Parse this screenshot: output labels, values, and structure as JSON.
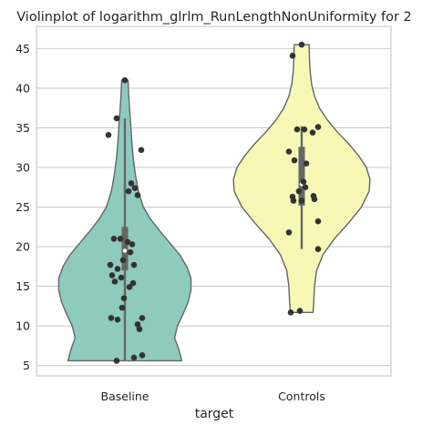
{
  "chart_data": {
    "type": "violin",
    "title": "Violinplot of logarithm_glrlm_RunLengthNonUniformity for 2",
    "xlabel": "target",
    "ylabel": "",
    "categories": [
      "Baseline",
      "Controls"
    ],
    "ylim": [
      3.7,
      47.8
    ],
    "yticks": [
      5,
      10,
      15,
      20,
      25,
      30,
      35,
      40,
      45
    ],
    "ytick_labels": [
      "5",
      "10",
      "15",
      "20",
      "25",
      "30",
      "35",
      "40",
      "45"
    ],
    "grid": true,
    "colors": {
      "Baseline": "#8ecabe",
      "Controls": "#f7f7b6",
      "outline": "#666666",
      "box": "#666666",
      "points": "#333333",
      "grid": "#cccccc",
      "frame": "#cccccc"
    },
    "series": [
      {
        "category": "Baseline",
        "range": [
          5.6,
          41.0
        ],
        "whisker": [
          5.6,
          36.2
        ],
        "box": [
          17.0,
          22.5
        ],
        "median": 19.5,
        "points": [
          {
            "jitter": 0.0,
            "value": 41.0
          },
          {
            "jitter": -0.09,
            "value": 36.2
          },
          {
            "jitter": -0.18,
            "value": 34.1
          },
          {
            "jitter": 0.18,
            "value": 32.2
          },
          {
            "jitter": 0.07,
            "value": 28.0
          },
          {
            "jitter": 0.11,
            "value": 27.4
          },
          {
            "jitter": 0.04,
            "value": 27.0
          },
          {
            "jitter": 0.14,
            "value": 26.5
          },
          {
            "jitter": -0.12,
            "value": 21.0
          },
          {
            "jitter": -0.05,
            "value": 21.0
          },
          {
            "jitter": 0.03,
            "value": 20.6
          },
          {
            "jitter": 0.08,
            "value": 20.3
          },
          {
            "jitter": 0.06,
            "value": 19.3
          },
          {
            "jitter": -0.02,
            "value": 18.3
          },
          {
            "jitter": -0.16,
            "value": 17.7
          },
          {
            "jitter": 0.1,
            "value": 17.7
          },
          {
            "jitter": -0.08,
            "value": 17.2
          },
          {
            "jitter": -0.14,
            "value": 16.4
          },
          {
            "jitter": -0.04,
            "value": 16.1
          },
          {
            "jitter": -0.11,
            "value": 15.6
          },
          {
            "jitter": 0.09,
            "value": 15.4
          },
          {
            "jitter": 0.05,
            "value": 14.9
          },
          {
            "jitter": -0.01,
            "value": 13.5
          },
          {
            "jitter": -0.03,
            "value": 12.3
          },
          {
            "jitter": -0.15,
            "value": 11.0
          },
          {
            "jitter": -0.08,
            "value": 10.8
          },
          {
            "jitter": 0.19,
            "value": 11.0
          },
          {
            "jitter": 0.14,
            "value": 10.2
          },
          {
            "jitter": 0.16,
            "value": 9.6
          },
          {
            "jitter": 0.19,
            "value": 6.3
          },
          {
            "jitter": 0.1,
            "value": 6.0
          },
          {
            "jitter": -0.09,
            "value": 5.6
          }
        ],
        "violin_profile": [
          [
            5.6,
            0.8
          ],
          [
            7.0,
            0.76
          ],
          [
            8.5,
            0.7
          ],
          [
            10.0,
            0.74
          ],
          [
            11.5,
            0.82
          ],
          [
            13.0,
            0.89
          ],
          [
            14.5,
            0.93
          ],
          [
            16.0,
            0.93
          ],
          [
            17.5,
            0.87
          ],
          [
            19.0,
            0.77
          ],
          [
            20.5,
            0.63
          ],
          [
            22.0,
            0.49
          ],
          [
            23.5,
            0.36
          ],
          [
            25.0,
            0.26
          ],
          [
            27.0,
            0.19
          ],
          [
            29.0,
            0.15
          ],
          [
            31.0,
            0.12
          ],
          [
            33.0,
            0.1
          ],
          [
            35.0,
            0.085
          ],
          [
            37.0,
            0.07
          ],
          [
            39.0,
            0.055
          ],
          [
            41.0,
            0.045
          ]
        ]
      },
      {
        "category": "Controls",
        "range": [
          11.7,
          45.5
        ],
        "whisker": [
          19.7,
          35.2
        ],
        "box": [
          25.2,
          32.6
        ],
        "median": 27.9,
        "points": [
          {
            "jitter": 0.0,
            "value": 45.5
          },
          {
            "jitter": -0.1,
            "value": 44.1
          },
          {
            "jitter": 0.18,
            "value": 35.1
          },
          {
            "jitter": -0.05,
            "value": 34.8
          },
          {
            "jitter": 0.03,
            "value": 34.8
          },
          {
            "jitter": 0.12,
            "value": 34.4
          },
          {
            "jitter": -0.14,
            "value": 32.0
          },
          {
            "jitter": -0.08,
            "value": 30.9
          },
          {
            "jitter": 0.05,
            "value": 30.5
          },
          {
            "jitter": 0.02,
            "value": 28.2
          },
          {
            "jitter": 0.04,
            "value": 27.5
          },
          {
            "jitter": -0.03,
            "value": 27.0
          },
          {
            "jitter": 0.13,
            "value": 26.4
          },
          {
            "jitter": -0.1,
            "value": 26.3
          },
          {
            "jitter": 0.14,
            "value": 26.0
          },
          {
            "jitter": -0.09,
            "value": 25.8
          },
          {
            "jitter": 0.0,
            "value": 25.8
          },
          {
            "jitter": 0.18,
            "value": 23.2
          },
          {
            "jitter": -0.14,
            "value": 21.8
          },
          {
            "jitter": 0.18,
            "value": 19.7
          },
          {
            "jitter": -0.02,
            "value": 11.9
          },
          {
            "jitter": -0.12,
            "value": 11.7
          }
        ],
        "violin_profile": [
          [
            11.7,
            0.16
          ],
          [
            13.0,
            0.17
          ],
          [
            15.0,
            0.18
          ],
          [
            17.0,
            0.21
          ],
          [
            19.0,
            0.3
          ],
          [
            21.0,
            0.46
          ],
          [
            23.0,
            0.66
          ],
          [
            25.0,
            0.84
          ],
          [
            27.0,
            0.95
          ],
          [
            28.5,
            0.96
          ],
          [
            30.0,
            0.91
          ],
          [
            31.5,
            0.8
          ],
          [
            33.0,
            0.66
          ],
          [
            34.5,
            0.5
          ],
          [
            36.0,
            0.36
          ],
          [
            37.5,
            0.25
          ],
          [
            39.0,
            0.18
          ],
          [
            40.5,
            0.14
          ],
          [
            42.0,
            0.12
          ],
          [
            43.5,
            0.11
          ],
          [
            45.5,
            0.105
          ]
        ]
      }
    ]
  }
}
